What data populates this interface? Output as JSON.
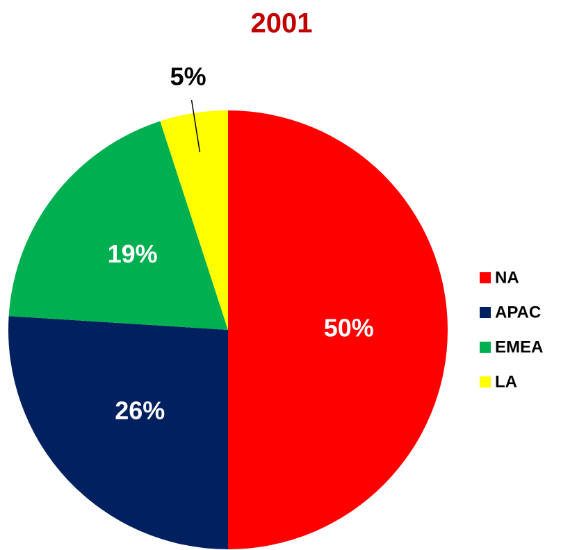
{
  "chart_data": {
    "type": "pie",
    "title": "2001",
    "categories": [
      "NA",
      "APAC",
      "EMEA",
      "LA"
    ],
    "values": [
      50,
      26,
      19,
      5
    ],
    "value_labels": [
      "50%",
      "26%",
      "19%",
      "5%"
    ],
    "colors": [
      "#ff0000",
      "#002060",
      "#00b050",
      "#ffff00"
    ],
    "legend": "right"
  }
}
